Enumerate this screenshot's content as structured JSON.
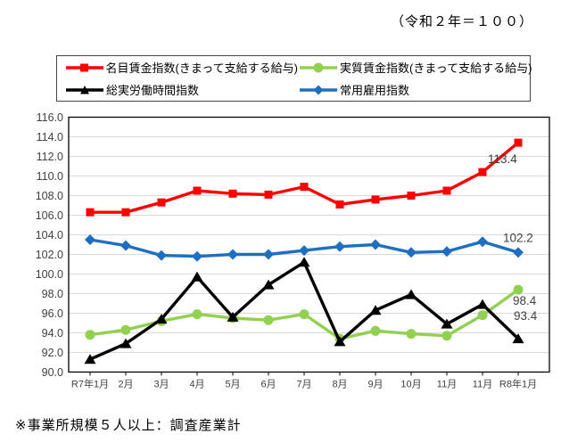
{
  "header": {
    "unit_note": "（令和２年＝１００）"
  },
  "footnote": "※事業所規模５人以上：調査産業計",
  "chart_data": {
    "type": "line",
    "title": "（令和２年＝１００）",
    "categories": [
      "R7年1月",
      "2月",
      "3月",
      "4月",
      "5月",
      "6月",
      "7月",
      "8月",
      "9月",
      "10月",
      "11月",
      "11月",
      "R8年1月"
    ],
    "series": [
      {
        "key": "nominal-wage-index",
        "name": "名目賃金指数(きまって支給する給与)",
        "color": "#FF0000",
        "marker": "square",
        "values": [
          106.3,
          106.3,
          107.3,
          108.5,
          108.2,
          108.1,
          108.9,
          107.1,
          107.6,
          108.0,
          108.5,
          110.4,
          113.4
        ],
        "end_label": "113.4"
      },
      {
        "key": "real-wage-index",
        "name": "実質賃金指数(きまって支給する給与)",
        "color": "#92D050",
        "marker": "circle",
        "values": [
          93.8,
          94.3,
          95.2,
          95.9,
          95.5,
          95.3,
          95.9,
          93.4,
          94.2,
          93.9,
          93.7,
          95.8,
          98.4
        ],
        "end_label": "98.4"
      },
      {
        "key": "total-hours-worked-index",
        "name": "総実労働時間指数",
        "color": "#000000",
        "marker": "triangle",
        "values": [
          91.3,
          92.9,
          95.4,
          99.7,
          95.6,
          98.9,
          101.2,
          93.1,
          96.3,
          97.9,
          94.9,
          96.9,
          93.4
        ],
        "end_label": "93.4"
      },
      {
        "key": "regular-employment-index",
        "name": "常用雇用指数",
        "color": "#1F6FC0",
        "marker": "diamond",
        "values": [
          103.5,
          102.9,
          101.9,
          101.8,
          102.0,
          102.0,
          102.4,
          102.8,
          103.0,
          102.2,
          102.3,
          103.3,
          102.2
        ],
        "end_label": "102.2"
      }
    ],
    "ylim": [
      90,
      116
    ],
    "ytick_step": 2,
    "ytick_labels": [
      "116.0",
      "114.0",
      "112.0",
      "110.0",
      "108.0",
      "106.0",
      "104.0",
      "102.0",
      "100.0",
      "98.0",
      "96.0",
      "94.0",
      "92.0",
      "90.0"
    ],
    "grid": true,
    "legend_position": "top",
    "axis_color": "#000000",
    "gridline_color": "#D9D9D9",
    "tick_label_color": "#404040",
    "end_label_color": "#404040"
  }
}
